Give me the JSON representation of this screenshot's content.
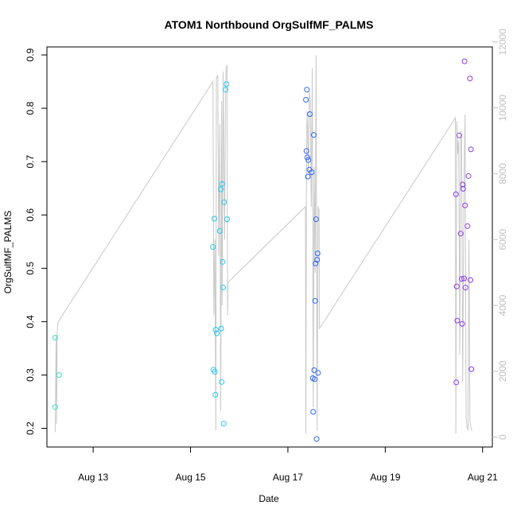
{
  "chart_data": {
    "type": "scatter",
    "title": "ATOM1 Northbound OrgSulfMF_PALMS",
    "xlabel": "Date",
    "ylabel": "OrgSulfMF_PALMS",
    "x_tick_labels": [
      {
        "label": "Aug 13",
        "day": 13
      },
      {
        "label": "Aug 15",
        "day": 15
      },
      {
        "label": "Aug 17",
        "day": 17
      },
      {
        "label": "Aug 19",
        "day": 19
      },
      {
        "label": "Aug 21",
        "day": 21
      }
    ],
    "xlim_day": [
      12.05,
      21.2
    ],
    "ylim": [
      0.165,
      0.915
    ],
    "y_ticks": [
      0.2,
      0.3,
      0.4,
      0.5,
      0.6,
      0.7,
      0.8,
      0.9
    ],
    "y2_ticks": [
      0,
      2000,
      4000,
      6000,
      8000,
      10000,
      12000
    ],
    "y2lim": [
      -300,
      11850
    ],
    "colors": {
      "axis": "#000000",
      "altitude_line": "#c8c8c8",
      "right_axis": "#c0c0c0"
    },
    "points": [
      {
        "day": 12.22,
        "y": 0.37,
        "color": "#35e6c0"
      },
      {
        "day": 12.22,
        "y": 0.24,
        "color": "#35e6c0"
      },
      {
        "day": 12.3,
        "y": 0.3,
        "color": "#35e6c0"
      },
      {
        "day": 15.46,
        "y": 0.54,
        "color": "#22c8ee"
      },
      {
        "day": 15.47,
        "y": 0.31,
        "color": "#22c8ee"
      },
      {
        "day": 15.49,
        "y": 0.593,
        "color": "#22c8ee"
      },
      {
        "day": 15.5,
        "y": 0.306,
        "color": "#22c8ee"
      },
      {
        "day": 15.51,
        "y": 0.263,
        "color": "#22c8ee"
      },
      {
        "day": 15.52,
        "y": 0.385,
        "color": "#22c8ee"
      },
      {
        "day": 15.54,
        "y": 0.378,
        "color": "#22c8ee"
      },
      {
        "day": 15.6,
        "y": 0.57,
        "color": "#22c8ee"
      },
      {
        "day": 15.62,
        "y": 0.648,
        "color": "#22c8ee"
      },
      {
        "day": 15.63,
        "y": 0.387,
        "color": "#22c8ee"
      },
      {
        "day": 15.64,
        "y": 0.287,
        "color": "#22c8ee"
      },
      {
        "day": 15.65,
        "y": 0.658,
        "color": "#22c8ee"
      },
      {
        "day": 15.66,
        "y": 0.512,
        "color": "#22c8ee"
      },
      {
        "day": 15.67,
        "y": 0.464,
        "color": "#22c8ee"
      },
      {
        "day": 15.68,
        "y": 0.209,
        "color": "#22c8ee"
      },
      {
        "day": 15.69,
        "y": 0.624,
        "color": "#22c8ee"
      },
      {
        "day": 15.72,
        "y": 0.835,
        "color": "#22c8ee"
      },
      {
        "day": 15.74,
        "y": 0.845,
        "color": "#22c8ee"
      },
      {
        "day": 15.75,
        "y": 0.592,
        "color": "#22c8ee"
      },
      {
        "day": 17.37,
        "y": 0.816,
        "color": "#2a66f5"
      },
      {
        "day": 17.38,
        "y": 0.72,
        "color": "#2a66f5"
      },
      {
        "day": 17.39,
        "y": 0.835,
        "color": "#2a66f5"
      },
      {
        "day": 17.4,
        "y": 0.708,
        "color": "#2a66f5"
      },
      {
        "day": 17.41,
        "y": 0.672,
        "color": "#2a66f5"
      },
      {
        "day": 17.42,
        "y": 0.703,
        "color": "#2a66f5"
      },
      {
        "day": 17.44,
        "y": 0.685,
        "color": "#2a66f5"
      },
      {
        "day": 17.45,
        "y": 0.789,
        "color": "#2a66f5"
      },
      {
        "day": 17.49,
        "y": 0.68,
        "color": "#2a66f5"
      },
      {
        "day": 17.51,
        "y": 0.294,
        "color": "#2a66f5"
      },
      {
        "day": 17.52,
        "y": 0.231,
        "color": "#2a66f5"
      },
      {
        "day": 17.53,
        "y": 0.75,
        "color": "#2a66f5"
      },
      {
        "day": 17.54,
        "y": 0.309,
        "color": "#2a66f5"
      },
      {
        "day": 17.55,
        "y": 0.292,
        "color": "#2a66f5"
      },
      {
        "day": 17.56,
        "y": 0.439,
        "color": "#2a66f5"
      },
      {
        "day": 17.57,
        "y": 0.509,
        "color": "#2a66f5"
      },
      {
        "day": 17.58,
        "y": 0.592,
        "color": "#2a66f5"
      },
      {
        "day": 17.59,
        "y": 0.18,
        "color": "#2a66f5"
      },
      {
        "day": 17.6,
        "y": 0.516,
        "color": "#2a66f5"
      },
      {
        "day": 17.61,
        "y": 0.528,
        "color": "#2a66f5"
      },
      {
        "day": 17.62,
        "y": 0.304,
        "color": "#2a66f5"
      },
      {
        "day": 20.45,
        "y": 0.639,
        "color": "#8e3ce8"
      },
      {
        "day": 20.46,
        "y": 0.286,
        "color": "#8e3ce8"
      },
      {
        "day": 20.47,
        "y": 0.466,
        "color": "#8e3ce8"
      },
      {
        "day": 20.48,
        "y": 0.402,
        "color": "#8e3ce8"
      },
      {
        "day": 20.52,
        "y": 0.749,
        "color": "#8e3ce8"
      },
      {
        "day": 20.55,
        "y": 0.565,
        "color": "#8e3ce8"
      },
      {
        "day": 20.57,
        "y": 0.48,
        "color": "#8e3ce8"
      },
      {
        "day": 20.58,
        "y": 0.396,
        "color": "#8e3ce8"
      },
      {
        "day": 20.59,
        "y": 0.657,
        "color": "#8e3ce8"
      },
      {
        "day": 20.6,
        "y": 0.649,
        "color": "#8e3ce8"
      },
      {
        "day": 20.62,
        "y": 0.481,
        "color": "#8e3ce8"
      },
      {
        "day": 20.63,
        "y": 0.888,
        "color": "#8e3ce8"
      },
      {
        "day": 20.64,
        "y": 0.618,
        "color": "#8e3ce8"
      },
      {
        "day": 20.65,
        "y": 0.464,
        "color": "#8e3ce8"
      },
      {
        "day": 20.69,
        "y": 0.579,
        "color": "#8e3ce8"
      },
      {
        "day": 20.71,
        "y": 0.673,
        "color": "#8e3ce8"
      },
      {
        "day": 20.74,
        "y": 0.856,
        "color": "#8e3ce8"
      },
      {
        "day": 20.75,
        "y": 0.478,
        "color": "#8e3ce8"
      },
      {
        "day": 20.76,
        "y": 0.723,
        "color": "#8e3ce8"
      },
      {
        "day": 20.77,
        "y": 0.311,
        "color": "#8e3ce8"
      }
    ],
    "altitude_line": [
      [
        12.22,
        150
      ],
      [
        12.24,
        3100
      ],
      [
        12.25,
        400
      ],
      [
        12.26,
        3200
      ],
      [
        12.28,
        3500
      ],
      [
        15.46,
        10800
      ],
      [
        15.48,
        3700
      ],
      [
        15.5,
        6000
      ],
      [
        15.52,
        200
      ],
      [
        15.53,
        10900
      ],
      [
        15.56,
        11000
      ],
      [
        15.58,
        5500
      ],
      [
        15.6,
        9500
      ],
      [
        15.62,
        800
      ],
      [
        15.64,
        10200
      ],
      [
        15.65,
        4000
      ],
      [
        15.67,
        11100
      ],
      [
        15.7,
        6000
      ],
      [
        15.72,
        10500
      ],
      [
        15.73,
        11200
      ],
      [
        15.75,
        11300
      ],
      [
        15.76,
        3700
      ],
      [
        15.77,
        4700
      ],
      [
        17.36,
        7000
      ],
      [
        17.37,
        100
      ],
      [
        17.38,
        7100
      ],
      [
        17.39,
        9500
      ],
      [
        17.4,
        9900
      ],
      [
        17.42,
        8000
      ],
      [
        17.44,
        10500
      ],
      [
        17.46,
        10200
      ],
      [
        17.48,
        7000
      ],
      [
        17.5,
        11200
      ],
      [
        17.52,
        900
      ],
      [
        17.54,
        8200
      ],
      [
        17.56,
        5000
      ],
      [
        17.58,
        11600
      ],
      [
        17.6,
        200
      ],
      [
        17.62,
        7000
      ],
      [
        17.64,
        6900
      ],
      [
        17.65,
        3300
      ],
      [
        20.4,
        9600
      ],
      [
        20.44,
        9700
      ],
      [
        20.45,
        100
      ],
      [
        20.47,
        9600
      ],
      [
        20.49,
        8600
      ],
      [
        20.51,
        9000
      ],
      [
        20.53,
        2500
      ],
      [
        20.55,
        9300
      ],
      [
        20.57,
        9000
      ],
      [
        20.59,
        1700
      ],
      [
        20.62,
        8000
      ],
      [
        20.64,
        9800
      ],
      [
        20.66,
        600
      ],
      [
        20.68,
        300
      ],
      [
        20.7,
        200
      ],
      [
        20.72,
        6000
      ],
      [
        20.74,
        500
      ],
      [
        20.76,
        300
      ],
      [
        20.78,
        200
      ]
    ]
  }
}
